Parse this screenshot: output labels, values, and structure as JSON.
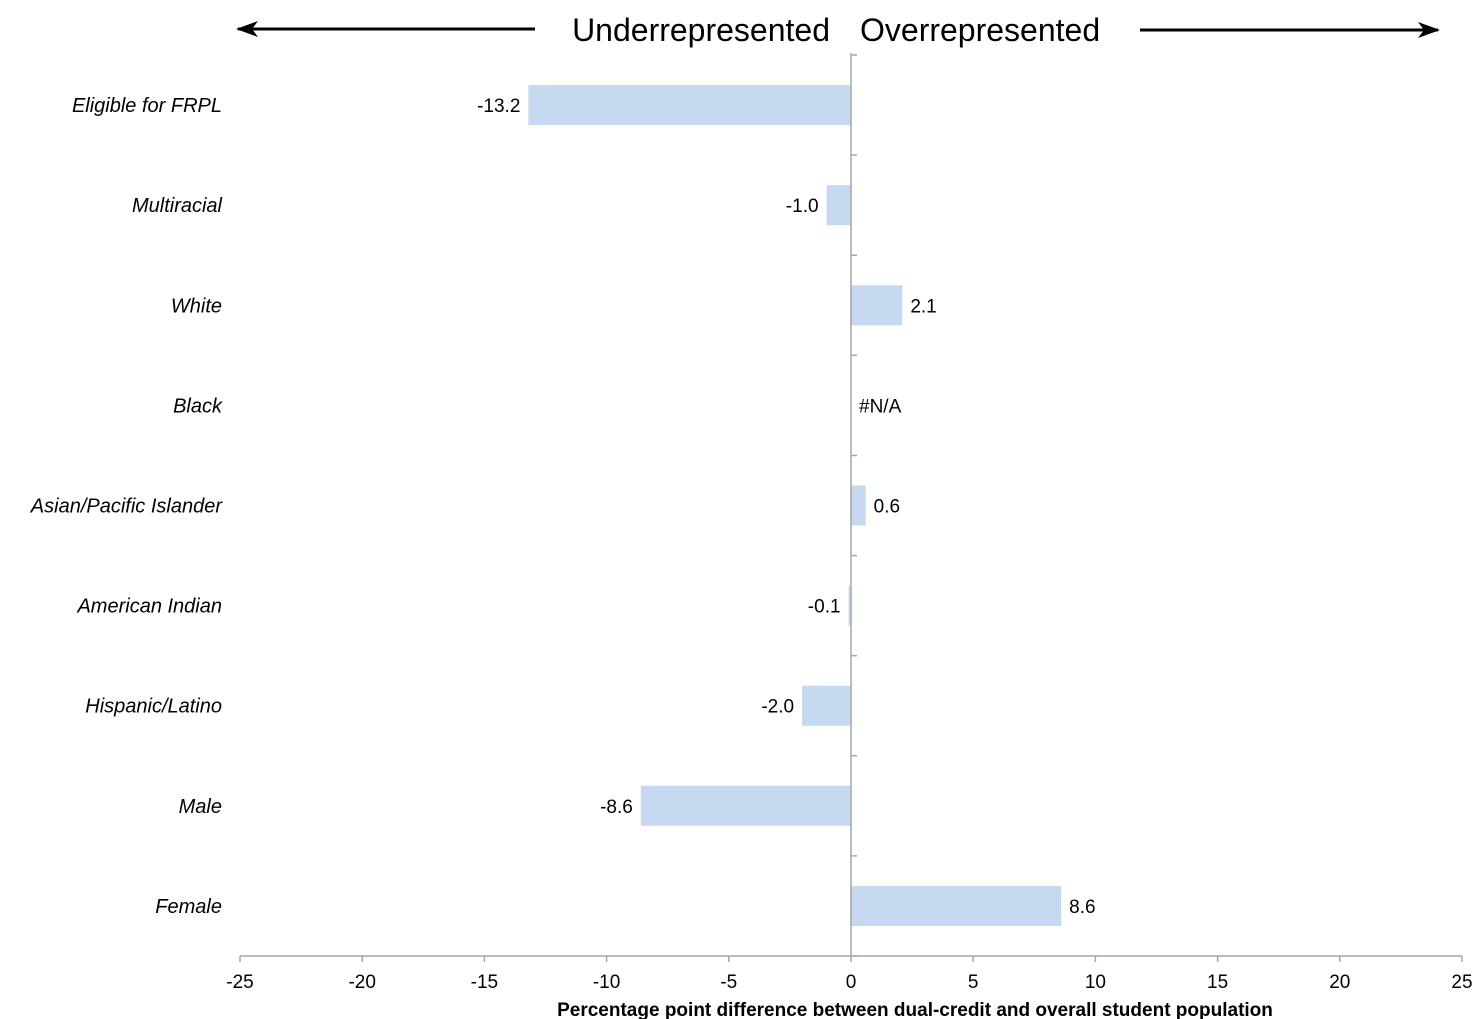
{
  "chart_data": {
    "type": "bar",
    "orientation": "horizontal",
    "categories": [
      "Eligible for FRPL",
      "Multiracial",
      "White",
      "Black",
      "Asian/Pacific Islander",
      "American Indian",
      "Hispanic/Latino",
      "Male",
      "Female"
    ],
    "values": [
      -13.2,
      -1.0,
      2.1,
      null,
      0.6,
      -0.1,
      -2.0,
      -8.6,
      8.6
    ],
    "data_labels": [
      "-13.2",
      "-1.0",
      "2.1",
      "#N/A",
      "0.6",
      "-0.1",
      "-2.0",
      "-8.6",
      "8.6"
    ],
    "xlabel": "Percentage point difference between dual-credit and overall student population",
    "xlim": [
      -25,
      25
    ],
    "xticks": [
      "-25",
      "-20",
      "-15",
      "-10",
      "-5",
      "0",
      "5",
      "10",
      "15",
      "20",
      "25"
    ],
    "left_heading": "Underrepresented",
    "right_heading": "Overrepresented",
    "bar_color": "#c6d9f1",
    "axis_color": "#a6a6a6",
    "grid": false
  }
}
